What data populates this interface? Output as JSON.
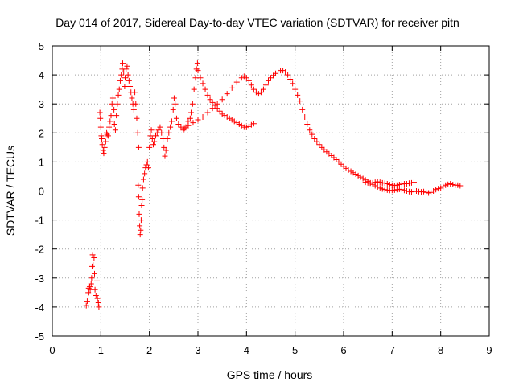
{
  "chart_data": {
    "type": "scatter",
    "title": "Day 014 of 2017, Sidereal Day-to-day VTEC variation (SDTVAR) for receiver pitn",
    "xlabel": "GPS time / hours",
    "ylabel": "SDTVAR / TECUs",
    "xlim": [
      0,
      9
    ],
    "ylim": [
      -5,
      5
    ],
    "x_ticks": [
      "0",
      "1",
      "2",
      "3",
      "4",
      "5",
      "6",
      "7",
      "8",
      "9"
    ],
    "y_ticks": [
      "-5",
      "-4",
      "-3",
      "-2",
      "-1",
      "0",
      "1",
      "2",
      "3",
      "4",
      "5"
    ],
    "grid": true,
    "marker": "+",
    "color": "#ff0000",
    "series": [
      {
        "name": "SDTVAR",
        "points": [
          [
            0.7,
            -3.95
          ],
          [
            0.72,
            -3.8
          ],
          [
            0.74,
            -3.5
          ],
          [
            0.75,
            -3.35
          ],
          [
            0.77,
            -3.3
          ],
          [
            0.78,
            -3.4
          ],
          [
            0.8,
            -3.2
          ],
          [
            0.81,
            -3.0
          ],
          [
            0.82,
            -2.6
          ],
          [
            0.83,
            -2.2
          ],
          [
            0.84,
            -2.55
          ],
          [
            0.86,
            -2.3
          ],
          [
            0.87,
            -2.85
          ],
          [
            0.88,
            -3.4
          ],
          [
            0.9,
            -3.6
          ],
          [
            0.92,
            -3.1
          ],
          [
            0.93,
            -3.7
          ],
          [
            0.95,
            -3.85
          ],
          [
            0.96,
            -4.0
          ],
          [
            0.98,
            2.7
          ],
          [
            0.99,
            2.5
          ],
          [
            1.0,
            2.2
          ],
          [
            1.01,
            1.9
          ],
          [
            1.02,
            1.8
          ],
          [
            1.03,
            1.6
          ],
          [
            1.05,
            1.4
          ],
          [
            1.06,
            1.3
          ],
          [
            1.08,
            1.5
          ],
          [
            1.1,
            1.7
          ],
          [
            1.12,
            2.0
          ],
          [
            1.13,
            1.95
          ],
          [
            1.15,
            1.9
          ],
          [
            1.17,
            2.2
          ],
          [
            1.19,
            2.4
          ],
          [
            1.21,
            2.6
          ],
          [
            1.23,
            3.0
          ],
          [
            1.25,
            3.2
          ],
          [
            1.27,
            2.8
          ],
          [
            1.28,
            2.3
          ],
          [
            1.3,
            2.1
          ],
          [
            1.32,
            2.6
          ],
          [
            1.34,
            3.0
          ],
          [
            1.36,
            3.3
          ],
          [
            1.38,
            3.5
          ],
          [
            1.4,
            3.8
          ],
          [
            1.42,
            4.0
          ],
          [
            1.44,
            4.2
          ],
          [
            1.45,
            4.4
          ],
          [
            1.47,
            4.1
          ],
          [
            1.49,
            3.6
          ],
          [
            1.5,
            3.9
          ],
          [
            1.52,
            4.2
          ],
          [
            1.54,
            4.3
          ],
          [
            1.56,
            4.0
          ],
          [
            1.58,
            3.8
          ],
          [
            1.6,
            3.6
          ],
          [
            1.62,
            3.4
          ],
          [
            1.64,
            3.2
          ],
          [
            1.66,
            3.0
          ],
          [
            1.68,
            2.8
          ],
          [
            1.7,
            3.4
          ],
          [
            1.72,
            3.0
          ],
          [
            1.74,
            2.5
          ],
          [
            1.76,
            2.0
          ],
          [
            1.78,
            1.5
          ],
          [
            1.77,
            0.2
          ],
          [
            1.78,
            -0.2
          ],
          [
            1.79,
            -0.8
          ],
          [
            1.8,
            -1.2
          ],
          [
            1.81,
            -1.5
          ],
          [
            1.82,
            -1.35
          ],
          [
            1.83,
            -1.0
          ],
          [
            1.84,
            -0.5
          ],
          [
            1.85,
            -0.3
          ],
          [
            1.86,
            0.1
          ],
          [
            1.88,
            0.4
          ],
          [
            1.9,
            0.6
          ],
          [
            1.92,
            0.8
          ],
          [
            1.94,
            0.9
          ],
          [
            1.96,
            1.0
          ],
          [
            1.98,
            0.8
          ],
          [
            2.0,
            1.5
          ],
          [
            2.02,
            1.9
          ],
          [
            2.04,
            2.1
          ],
          [
            2.06,
            1.8
          ],
          [
            2.08,
            1.6
          ],
          [
            2.1,
            1.7
          ],
          [
            2.13,
            1.9
          ],
          [
            2.16,
            2.0
          ],
          [
            2.19,
            2.1
          ],
          [
            2.22,
            2.2
          ],
          [
            2.25,
            2.0
          ],
          [
            2.28,
            1.8
          ],
          [
            2.3,
            1.5
          ],
          [
            2.32,
            1.2
          ],
          [
            2.34,
            1.4
          ],
          [
            2.37,
            1.8
          ],
          [
            2.4,
            2.0
          ],
          [
            2.43,
            2.2
          ],
          [
            2.46,
            2.4
          ],
          [
            2.49,
            2.8
          ],
          [
            2.51,
            3.2
          ],
          [
            2.53,
            3.0
          ],
          [
            2.56,
            2.5
          ],
          [
            2.6,
            2.3
          ],
          [
            2.65,
            2.2
          ],
          [
            2.7,
            2.1
          ],
          [
            2.75,
            2.2
          ],
          [
            2.8,
            2.4
          ],
          [
            2.84,
            2.5
          ],
          [
            2.86,
            2.7
          ],
          [
            2.89,
            3.0
          ],
          [
            2.92,
            3.5
          ],
          [
            2.95,
            3.9
          ],
          [
            2.97,
            4.2
          ],
          [
            2.99,
            4.4
          ],
          [
            3.0,
            4.15
          ],
          [
            3.05,
            3.9
          ],
          [
            3.1,
            3.7
          ],
          [
            3.15,
            3.5
          ],
          [
            3.2,
            3.3
          ],
          [
            3.25,
            3.15
          ],
          [
            3.3,
            3.05
          ],
          [
            3.35,
            2.95
          ],
          [
            3.4,
            2.85
          ],
          [
            3.45,
            2.75
          ],
          [
            3.5,
            2.65
          ],
          [
            3.55,
            2.6
          ],
          [
            3.6,
            2.55
          ],
          [
            3.65,
            2.5
          ],
          [
            3.7,
            2.45
          ],
          [
            3.75,
            2.4
          ],
          [
            3.8,
            2.35
          ],
          [
            3.85,
            2.3
          ],
          [
            3.9,
            2.25
          ],
          [
            3.95,
            2.2
          ],
          [
            4.0,
            2.2
          ],
          [
            4.05,
            2.22
          ],
          [
            4.1,
            2.28
          ],
          [
            4.15,
            2.32
          ],
          [
            2.72,
            2.15
          ],
          [
            2.8,
            2.25
          ],
          [
            2.9,
            2.35
          ],
          [
            3.0,
            2.45
          ],
          [
            3.1,
            2.55
          ],
          [
            3.2,
            2.7
          ],
          [
            3.3,
            2.85
          ],
          [
            3.4,
            3.0
          ],
          [
            3.5,
            3.15
          ],
          [
            3.6,
            3.35
          ],
          [
            3.7,
            3.55
          ],
          [
            3.8,
            3.75
          ],
          [
            3.9,
            3.9
          ],
          [
            3.95,
            3.95
          ],
          [
            4.0,
            3.9
          ],
          [
            4.05,
            3.8
          ],
          [
            4.1,
            3.65
          ],
          [
            4.15,
            3.5
          ],
          [
            4.2,
            3.4
          ],
          [
            4.25,
            3.35
          ],
          [
            4.3,
            3.4
          ],
          [
            4.35,
            3.5
          ],
          [
            4.4,
            3.65
          ],
          [
            4.45,
            3.8
          ],
          [
            4.5,
            3.9
          ],
          [
            4.55,
            3.98
          ],
          [
            4.6,
            4.05
          ],
          [
            4.65,
            4.1
          ],
          [
            4.7,
            4.15
          ],
          [
            4.75,
            4.15
          ],
          [
            4.8,
            4.1
          ],
          [
            4.85,
            4.0
          ],
          [
            4.9,
            3.85
          ],
          [
            4.95,
            3.7
          ],
          [
            5.0,
            3.5
          ],
          [
            5.05,
            3.3
          ],
          [
            5.1,
            3.1
          ],
          [
            5.15,
            2.8
          ],
          [
            5.2,
            2.55
          ],
          [
            5.25,
            2.3
          ],
          [
            5.3,
            2.1
          ],
          [
            5.35,
            1.95
          ],
          [
            5.4,
            1.8
          ],
          [
            5.45,
            1.7
          ],
          [
            5.5,
            1.6
          ],
          [
            5.55,
            1.5
          ],
          [
            5.6,
            1.42
          ],
          [
            5.65,
            1.35
          ],
          [
            5.7,
            1.28
          ],
          [
            5.75,
            1.22
          ],
          [
            5.8,
            1.15
          ],
          [
            5.85,
            1.08
          ],
          [
            5.9,
            1.0
          ],
          [
            5.95,
            0.92
          ],
          [
            6.0,
            0.85
          ],
          [
            6.05,
            0.78
          ],
          [
            6.1,
            0.72
          ],
          [
            6.15,
            0.68
          ],
          [
            6.2,
            0.63
          ],
          [
            6.25,
            0.58
          ],
          [
            6.3,
            0.53
          ],
          [
            6.35,
            0.48
          ],
          [
            6.4,
            0.43
          ],
          [
            6.45,
            0.38
          ],
          [
            6.5,
            0.33
          ],
          [
            6.55,
            0.28
          ],
          [
            6.6,
            0.23
          ],
          [
            6.65,
            0.18
          ],
          [
            6.7,
            0.14
          ],
          [
            6.75,
            0.1
          ],
          [
            6.8,
            0.07
          ],
          [
            6.85,
            0.05
          ],
          [
            6.9,
            0.03
          ],
          [
            6.95,
            0.02
          ],
          [
            7.0,
            0.02
          ],
          [
            7.05,
            0.03
          ],
          [
            7.1,
            0.05
          ],
          [
            7.15,
            0.06
          ],
          [
            7.2,
            0.05
          ],
          [
            7.25,
            0.02
          ],
          [
            7.3,
            0.0
          ],
          [
            7.35,
            -0.02
          ],
          [
            7.4,
            -0.03
          ],
          [
            7.45,
            -0.02
          ],
          [
            7.5,
            0.0
          ],
          [
            7.55,
            -0.02
          ],
          [
            7.6,
            -0.03
          ],
          [
            7.65,
            -0.02
          ],
          [
            7.7,
            -0.05
          ],
          [
            7.75,
            -0.07
          ],
          [
            7.8,
            -0.05
          ],
          [
            7.85,
            0.0
          ],
          [
            7.9,
            0.05
          ],
          [
            7.95,
            0.08
          ],
          [
            8.0,
            0.1
          ],
          [
            8.05,
            0.15
          ],
          [
            8.1,
            0.2
          ],
          [
            8.15,
            0.23
          ],
          [
            8.2,
            0.25
          ],
          [
            8.25,
            0.22
          ],
          [
            8.3,
            0.2
          ],
          [
            8.35,
            0.2
          ],
          [
            8.4,
            0.18
          ],
          [
            6.45,
            0.3
          ],
          [
            6.5,
            0.28
          ],
          [
            6.55,
            0.27
          ],
          [
            6.6,
            0.28
          ],
          [
            6.65,
            0.3
          ],
          [
            6.7,
            0.32
          ],
          [
            6.75,
            0.3
          ],
          [
            6.8,
            0.28
          ],
          [
            6.85,
            0.27
          ],
          [
            6.9,
            0.25
          ],
          [
            6.95,
            0.22
          ],
          [
            7.0,
            0.2
          ],
          [
            7.05,
            0.19
          ],
          [
            7.1,
            0.2
          ],
          [
            7.15,
            0.22
          ],
          [
            7.2,
            0.24
          ],
          [
            7.25,
            0.25
          ],
          [
            7.3,
            0.25
          ],
          [
            7.35,
            0.27
          ],
          [
            7.4,
            0.28
          ],
          [
            7.45,
            0.3
          ]
        ]
      }
    ]
  }
}
